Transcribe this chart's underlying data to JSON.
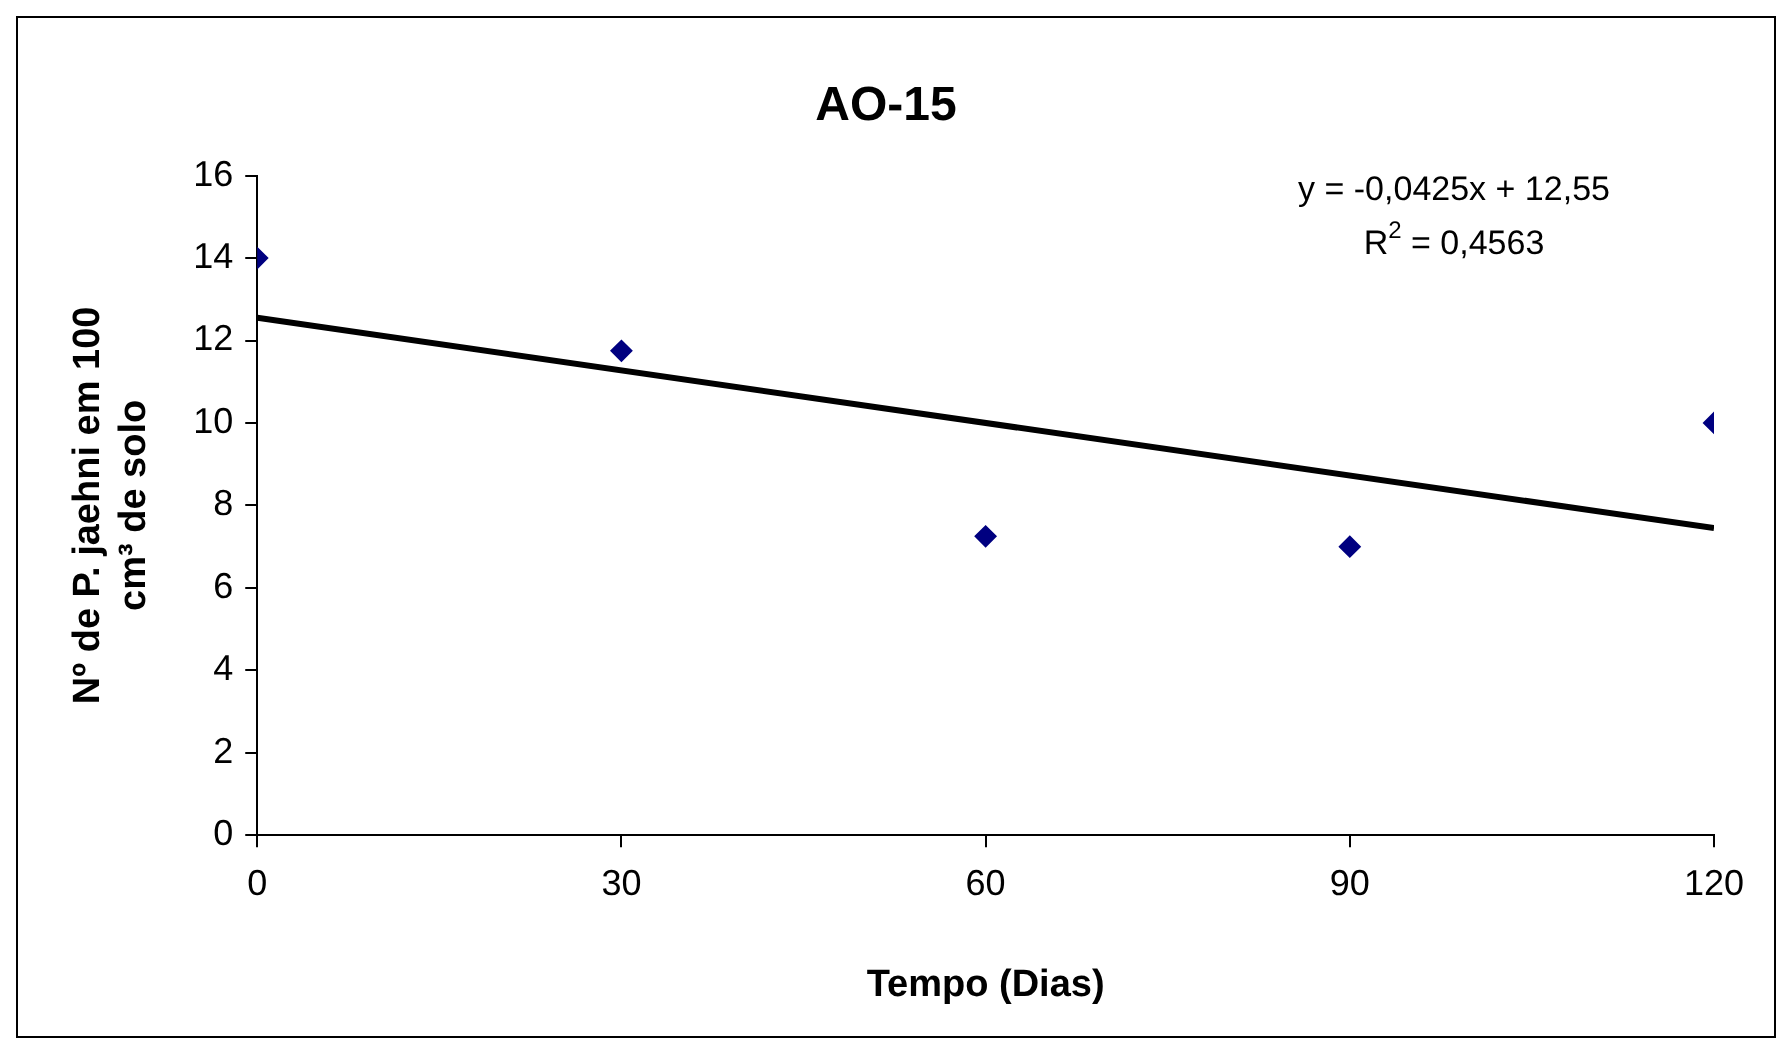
{
  "chart_data": {
    "type": "scatter",
    "title": "AO-15",
    "xlabel": "Tempo (Dias)",
    "ylabel": "Nº de P. jaehni em 100 cm³ de solo",
    "x": [
      0,
      30,
      60,
      90,
      120
    ],
    "series": [
      {
        "color": "#000080",
        "values": [
          14,
          11.75,
          7.25,
          7,
          10
        ],
        "marker": "diamond"
      },
      {
        "type": "line",
        "color": "#000000",
        "x": [
          0,
          120
        ],
        "values": [
          12.55,
          7.45
        ],
        "marker": "none",
        "line_style": "solid"
      }
    ],
    "xlim": [
      0,
      120
    ],
    "xticks": [
      0,
      30,
      60,
      90,
      120
    ],
    "ylim": [
      0,
      16
    ],
    "yticks": [
      0,
      2,
      4,
      6,
      8,
      10,
      12,
      14,
      16
    ],
    "grid": false,
    "legend": false,
    "annotations": [
      "y = -0,0425x + 12,55",
      "R$^{2}$ = 0,4563"
    ]
  }
}
